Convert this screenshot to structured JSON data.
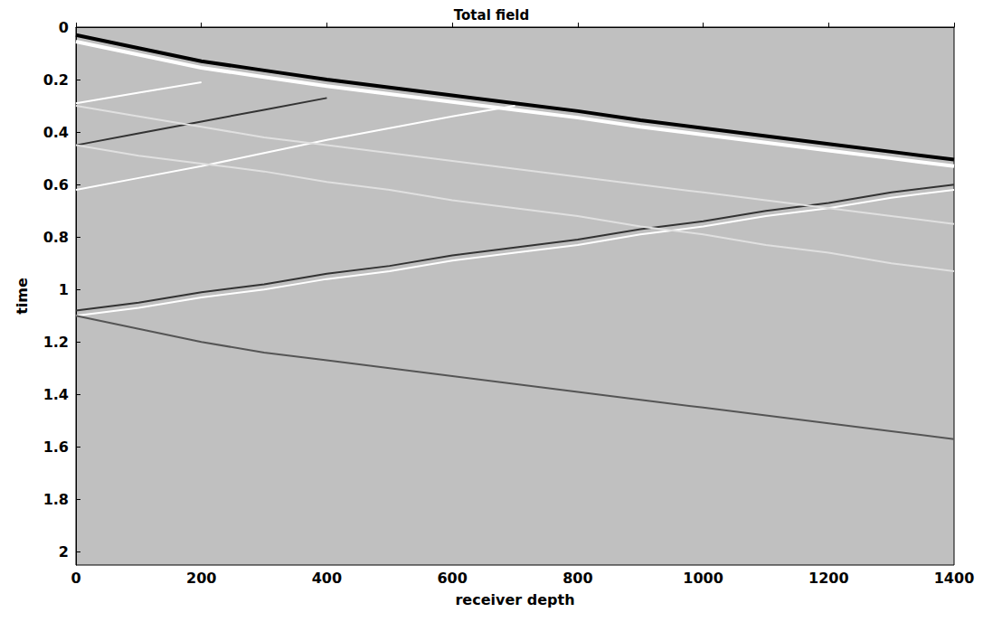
{
  "chart_data": {
    "type": "line",
    "title": "Total field",
    "x_label": "receiver depth",
    "y_label": "time",
    "x": [
      0,
      100,
      200,
      300,
      400,
      500,
      600,
      700,
      800,
      900,
      1000,
      1100,
      1200,
      1300,
      1400
    ],
    "series": [
      {
        "color": "#000000",
        "values": [
          0.03,
          0.08,
          0.13,
          0.165,
          0.2,
          0.23,
          0.26,
          0.29,
          0.32,
          0.355,
          0.385,
          0.415,
          0.445,
          0.475,
          0.505
        ]
      },
      {
        "color": "#ffffff",
        "values": [
          0.055,
          0.105,
          0.155,
          0.19,
          0.225,
          0.255,
          0.285,
          0.315,
          0.345,
          0.38,
          0.41,
          0.44,
          0.47,
          0.5,
          0.53
        ]
      },
      {
        "color": "#ffffff",
        "values": [
          0.29,
          0.25,
          0.21,
          null,
          null,
          null,
          null,
          null,
          null,
          null,
          null,
          null,
          null,
          null,
          null
        ]
      },
      {
        "color": "#333333",
        "values": [
          0.45,
          0.405,
          0.36,
          0.315,
          0.27,
          null,
          null,
          null,
          null,
          null,
          null,
          null,
          null,
          null,
          null
        ]
      },
      {
        "color": "#ffffff",
        "values": [
          0.62,
          0.575,
          0.53,
          0.48,
          0.43,
          0.385,
          0.34,
          0.3,
          null,
          null,
          null,
          null,
          null,
          null,
          null
        ]
      },
      {
        "color": "#333333",
        "values": [
          1.08,
          1.05,
          1.01,
          0.98,
          0.94,
          0.91,
          0.87,
          0.84,
          0.81,
          0.77,
          0.74,
          0.7,
          0.67,
          0.63,
          0.6
        ]
      },
      {
        "color": "#ffffff",
        "values": [
          1.1,
          1.07,
          1.03,
          1.0,
          0.96,
          0.93,
          0.89,
          0.86,
          0.83,
          0.79,
          0.76,
          0.72,
          0.69,
          0.65,
          0.62
        ]
      },
      {
        "color": "#e0e0e0",
        "values": [
          0.45,
          0.49,
          0.52,
          0.55,
          0.59,
          0.62,
          0.66,
          0.69,
          0.72,
          0.76,
          0.79,
          0.83,
          0.86,
          0.9,
          0.93
        ]
      },
      {
        "color": "#e0e0e0",
        "values": [
          0.3,
          0.34,
          0.38,
          0.42,
          0.45,
          0.48,
          0.51,
          0.54,
          0.57,
          0.6,
          0.63,
          0.66,
          0.69,
          0.72,
          0.75
        ]
      },
      {
        "color": "#555555",
        "values": [
          1.1,
          1.15,
          1.2,
          1.24,
          1.27,
          1.3,
          1.33,
          1.36,
          1.39,
          1.42,
          1.45,
          1.48,
          1.51,
          1.54,
          1.57
        ]
      }
    ],
    "xlim": [
      0,
      1400
    ],
    "xticks": [
      0,
      200,
      400,
      600,
      800,
      1000,
      1200,
      1400
    ],
    "ylim": [
      0,
      2.05
    ],
    "yticks": [
      0,
      0.2,
      0.4,
      0.6,
      0.8,
      1,
      1.2,
      1.4,
      1.6,
      1.8,
      2
    ],
    "grid": false
  }
}
